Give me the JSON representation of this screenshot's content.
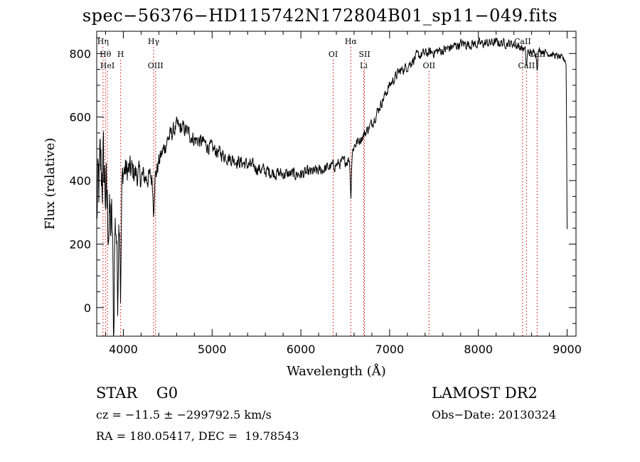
{
  "chart_data": {
    "type": "line",
    "title": "spec−56376−HD115742N172804B01_sp11−049.fits",
    "xlabel": "Wavelength (Å)",
    "ylabel": "Flux (relative)",
    "xlim": [
      3700,
      9100
    ],
    "ylim": [
      -90,
      870
    ],
    "xticks": [
      4000,
      5000,
      6000,
      7000,
      8000,
      9000
    ],
    "yticks": [
      0,
      200,
      400,
      600,
      800
    ],
    "grid": false,
    "line_color": "#000000",
    "marker_color": "#cc0000",
    "spectrum_anchors": {
      "x": [
        3700,
        3740,
        3780,
        3820,
        3860,
        3900,
        3950,
        4000,
        4100,
        4200,
        4300,
        4350,
        4400,
        4500,
        4600,
        4700,
        4800,
        4900,
        5000,
        5200,
        5400,
        5600,
        5800,
        6000,
        6200,
        6400,
        6500,
        6560,
        6600,
        6700,
        6800,
        6900,
        7000,
        7100,
        7200,
        7300,
        7400,
        7600,
        7800,
        8000,
        8200,
        8400,
        8500,
        8600,
        8700,
        8800,
        8900,
        8980,
        8990,
        9000
      ],
      "y": [
        300,
        420,
        430,
        300,
        250,
        250,
        300,
        430,
        430,
        410,
        410,
        400,
        460,
        530,
        570,
        560,
        530,
        520,
        500,
        470,
        450,
        430,
        420,
        420,
        430,
        450,
        460,
        470,
        510,
        540,
        580,
        640,
        700,
        740,
        760,
        790,
        800,
        810,
        830,
        830,
        835,
        830,
        815,
        800,
        810,
        800,
        790,
        780,
        760,
        250
      ]
    },
    "spectrum_noise": {
      "x": [
        3700,
        3800,
        3900,
        4000,
        4200,
        4400,
        5000,
        6000,
        7000,
        8000,
        8500,
        9000
      ],
      "amplitude": [
        230,
        210,
        170,
        80,
        60,
        45,
        35,
        30,
        25,
        25,
        20,
        15
      ]
    },
    "absorption_dips": [
      {
        "x": 3890,
        "depth": 350
      },
      {
        "x": 3935,
        "depth": 250
      },
      {
        "x": 3970,
        "depth": 300
      },
      {
        "x": 4340,
        "depth": 90
      },
      {
        "x": 6563,
        "depth": 120
      },
      {
        "x": 8542,
        "depth": 50
      },
      {
        "x": 8662,
        "depth": 50
      }
    ],
    "line_markers": [
      {
        "x": 3771,
        "label": "Hη",
        "row": 1
      },
      {
        "x": 3798,
        "label": "Hθ",
        "row": 2
      },
      {
        "x": 3820,
        "label": "HeI",
        "row": 3
      },
      {
        "x": 3970,
        "label": "H",
        "row": 2
      },
      {
        "x": 4341,
        "label": "Hγ",
        "row": 1
      },
      {
        "x": 4363,
        "label": "OIII",
        "row": 3
      },
      {
        "x": 6364,
        "label": "OI",
        "row": 2
      },
      {
        "x": 6563,
        "label": "Hα",
        "row": 1
      },
      {
        "x": 6717,
        "label": "SII",
        "row": 2
      },
      {
        "x": 6708,
        "label": "Li",
        "row": 3
      },
      {
        "x": 7444,
        "label": "OII",
        "row": 3
      },
      {
        "x": 8498,
        "label": "CaII",
        "row": 1
      },
      {
        "x": 8542,
        "label": "CaII",
        "row": 3
      },
      {
        "x": 8662,
        "label": "CaII",
        "row": 2
      }
    ]
  },
  "info": {
    "obj_class": "STAR    G0",
    "survey": "LAMOST DR2",
    "cz": "cz = −11.5 ± −299792.5 km/s",
    "obs_date": "Obs−Date: 20130324",
    "radec": "RA = 180.05417, DEC =  19.78543"
  }
}
